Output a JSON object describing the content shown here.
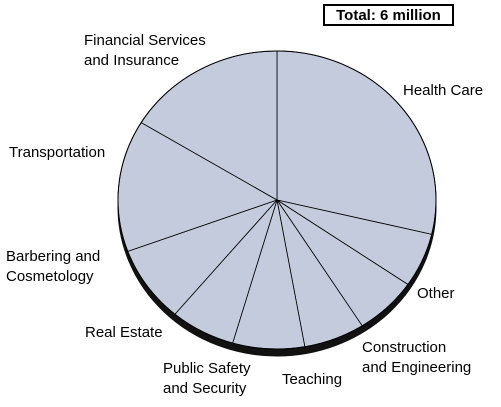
{
  "chart_data": {
    "type": "pie",
    "title": "",
    "total_label": "Total: 6 million",
    "slices": [
      {
        "label_lines": [
          "Health Care"
        ],
        "percent": 28.7
      },
      {
        "label_lines": [
          "Other"
        ],
        "percent": 5.9
      },
      {
        "label_lines": [
          "Construction",
          "and Engineering"
        ],
        "percent": 6.4
      },
      {
        "label_lines": [
          "Teaching"
        ],
        "percent": 6.2
      },
      {
        "label_lines": [
          "Public Safety",
          "and Security"
        ],
        "percent": 7.3
      },
      {
        "label_lines": [
          "Real Estate"
        ],
        "percent": 6.6
      },
      {
        "label_lines": [
          "Barbering and",
          "Cosmetology"
        ],
        "percent": 8.3
      },
      {
        "label_lines": [
          "Transportation"
        ],
        "percent": 14.3
      },
      {
        "label_lines": [
          "Financial Services",
          "and Insurance"
        ],
        "percent": 16.3
      }
    ],
    "colors": {
      "slice_fill": "#c3cbdd",
      "slice_stroke": "#000000",
      "edge": "#111111"
    },
    "legend": "none"
  }
}
